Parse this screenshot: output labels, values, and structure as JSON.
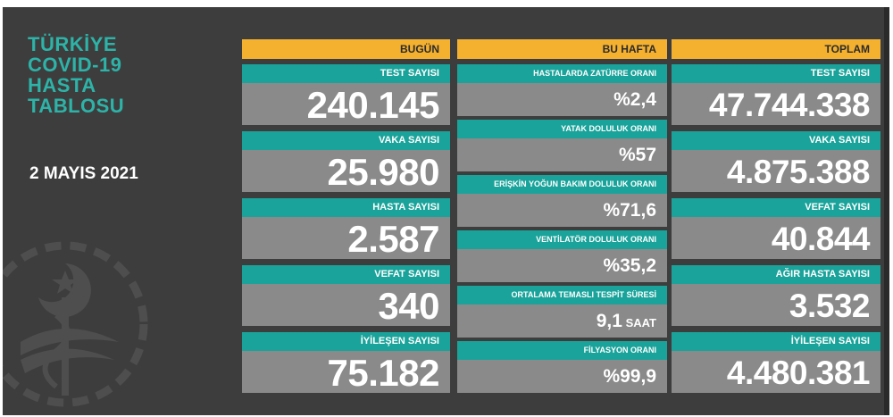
{
  "header": {
    "title_lines": [
      "TÜRKİYE",
      "COVID-19",
      "HASTA",
      "TABLOSU"
    ],
    "date": "2 MAYIS 2021"
  },
  "today": {
    "heading": "BUGÜN",
    "cards": [
      {
        "label": "TEST SAYISI",
        "value": "240.145"
      },
      {
        "label": "VAKA SAYISI",
        "value": "25.980"
      },
      {
        "label": "HASTA SAYISI",
        "value": "2.587"
      },
      {
        "label": "VEFAT SAYISI",
        "value": "340"
      },
      {
        "label": "İYİLEŞEN SAYISI",
        "value": "75.182"
      }
    ]
  },
  "week": {
    "heading": "BU HAFTA",
    "cards": [
      {
        "label": "HASTALARDA ZATÜRRE ORANI",
        "value": "%2,4",
        "unit": ""
      },
      {
        "label": "YATAK DOLULUK ORANI",
        "value": "%57",
        "unit": ""
      },
      {
        "label": "ERİŞKİN YOĞUN BAKIM DOLULUK ORANI",
        "value": "%71,6",
        "unit": ""
      },
      {
        "label": "VENTİLATÖR DOLULUK ORANI",
        "value": "%35,2",
        "unit": ""
      },
      {
        "label": "ORTALAMA TEMASLI TESPİT SÜRESİ",
        "value": "9,1",
        "unit": " SAAT"
      },
      {
        "label": "FİLYASYON ORANI",
        "value": "%99,9",
        "unit": ""
      }
    ]
  },
  "total": {
    "heading": "TOPLAM",
    "cards": [
      {
        "label": "TEST SAYISI",
        "value": "47.744.338"
      },
      {
        "label": "VAKA SAYISI",
        "value": "4.875.388"
      },
      {
        "label": "VEFAT SAYISI",
        "value": "40.844"
      },
      {
        "label": "AĞIR HASTA SAYISI",
        "value": "3.532"
      },
      {
        "label": "İYİLEŞEN SAYISI",
        "value": "4.480.381"
      }
    ]
  },
  "colors": {
    "accent": "#f4b02f",
    "label_bg": "#1aa39a",
    "value_bg": "#8a8a8a",
    "title": "#2db3a8",
    "board": "#3d3d3d"
  },
  "icons": [
    "ministry-emblem-icon"
  ]
}
